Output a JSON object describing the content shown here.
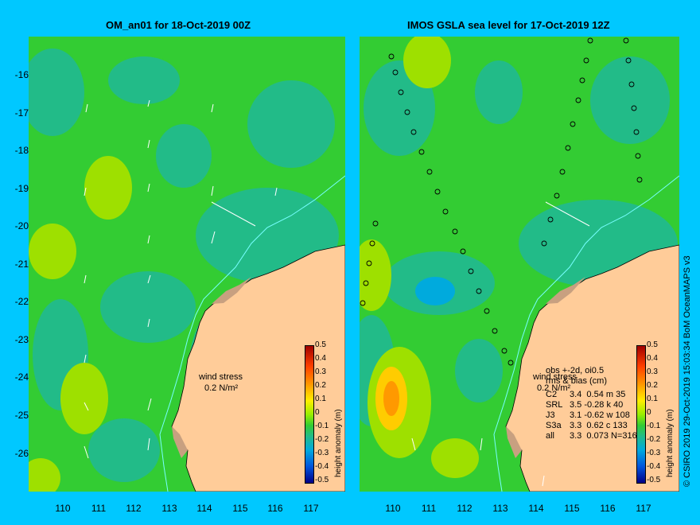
{
  "left_panel": {
    "title": "OM_an01 for 18-Oct-2019 00Z",
    "wind_label_1": "wind stress",
    "wind_label_2": "0.2 N/m²"
  },
  "right_panel": {
    "title": "IMOS GSLA sea level  for 17-Oct-2019 12Z",
    "wind_label_1": "wind stress",
    "wind_label_2": "0.2 N/m²",
    "stats_header_1": "obs +-2d, oi0.5",
    "stats_header_2": "rms & bias (cm)",
    "stats": [
      {
        "sat": "C2",
        "text": "3.4  0.54 m 35"
      },
      {
        "sat": "SRL",
        "text": "3.5 -0.28 k 40"
      },
      {
        "sat": "J3",
        "text": "3.1 -0.62 w 108"
      },
      {
        "sat": "S3a",
        "text": "3.3  0.62 c 133"
      },
      {
        "sat": "all",
        "text": "3.3  0.073 N=316"
      }
    ]
  },
  "colorbar": {
    "title": "height anomaly (m)",
    "ticks": [
      "0.5",
      "0.4",
      "0.3",
      "0.2",
      "0.1",
      "0",
      "-0.1",
      "-0.2",
      "-0.3",
      "-0.4",
      "-0.5"
    ]
  },
  "axes": {
    "lat_ticks": [
      "-16",
      "-17",
      "-18",
      "-19",
      "-20",
      "-21",
      "-22",
      "-23",
      "-24",
      "-25",
      "-26"
    ],
    "lon_ticks": [
      "110",
      "111",
      "112",
      "113",
      "114",
      "115",
      "116",
      "117"
    ]
  },
  "credit": "© CSIRO 2019   29-Oct-2019 15:03:34 BoM OceanMAPS v3",
  "colors": {
    "background": "#00c8ff",
    "land": "#ffcc99",
    "shelf": "#c8a080",
    "ocean_green": "#33cc33",
    "ocean_teal": "#22bb88"
  }
}
